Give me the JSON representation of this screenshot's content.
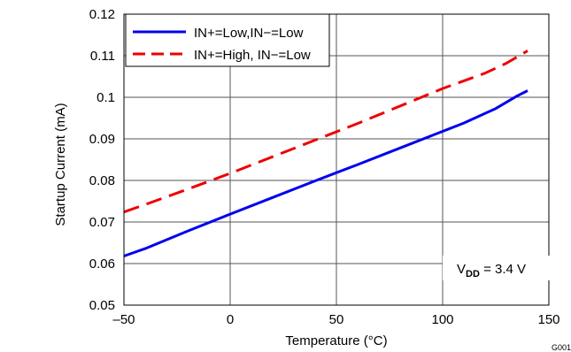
{
  "chart_data": {
    "type": "line",
    "title": "",
    "xlabel": "Temperature (°C)",
    "ylabel": "Startup Current (mA)",
    "xlim": [
      -50,
      150
    ],
    "ylim": [
      0.05,
      0.12
    ],
    "xticks": [
      -50,
      0,
      50,
      100,
      150
    ],
    "xtick_labels": [
      "–50",
      "0",
      "50",
      "100",
      "150"
    ],
    "yticks": [
      0.05,
      0.06,
      0.07,
      0.08,
      0.09,
      0.1,
      0.11,
      0.12
    ],
    "ytick_labels": [
      "0.05",
      "0.06",
      "0.07",
      "0.08",
      "0.09",
      "0.1",
      "0.11",
      "0.12"
    ],
    "grid": true,
    "legend_position": "top-left",
    "series": [
      {
        "name": "IN+=Low,IN−=Low",
        "color": "#0000ee",
        "dash": "solid",
        "x": [
          -50,
          -40,
          -20,
          0,
          20,
          40,
          60,
          80,
          100,
          110,
          125,
          135,
          140
        ],
        "y": [
          0.0618,
          0.0636,
          0.0678,
          0.0719,
          0.0759,
          0.0799,
          0.0838,
          0.0878,
          0.0918,
          0.0938,
          0.0973,
          0.1003,
          0.1016
        ]
      },
      {
        "name": "IN+=High, IN−=Low",
        "color": "#ee0000",
        "dash": "dashed",
        "x": [
          -50,
          -40,
          -20,
          0,
          20,
          40,
          60,
          80,
          100,
          120,
          130,
          140
        ],
        "y": [
          0.0724,
          0.0742,
          0.0779,
          0.0817,
          0.0857,
          0.0897,
          0.0937,
          0.0979,
          0.1021,
          0.1058,
          0.1082,
          0.1112
        ]
      }
    ],
    "annotation": {
      "text_main": "V",
      "text_sub": "DD",
      "text_rest": " = 3.4 V"
    },
    "figure_id": "G001"
  }
}
